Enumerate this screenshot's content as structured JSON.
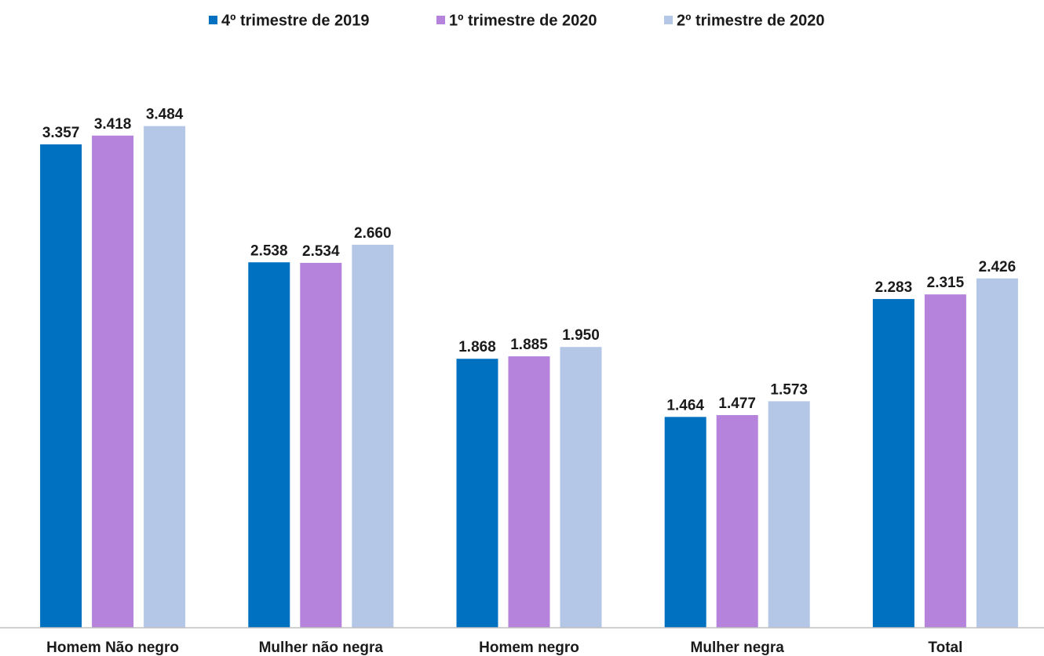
{
  "chart_data": {
    "type": "bar",
    "categories": [
      "Homem Não negro",
      "Mulher não negra",
      "Homem negro",
      "Mulher negra",
      "Total"
    ],
    "series": [
      {
        "name": "4º trimestre de 2019",
        "color": "#0070c0",
        "values": [
          3357,
          2538,
          1868,
          1464,
          2283
        ],
        "value_labels": [
          "3.357",
          "2.538",
          "1.868",
          "1.464",
          "2.283"
        ]
      },
      {
        "name": "1º trimestre de 2020",
        "color": "#b583db",
        "values": [
          3418,
          2534,
          1885,
          1477,
          2315
        ],
        "value_labels": [
          "3.418",
          "2.534",
          "1.885",
          "1.477",
          "2.315"
        ]
      },
      {
        "name": "2º trimestre de 2020",
        "color": "#b4c7e7",
        "values": [
          3484,
          2660,
          1950,
          1573,
          2426
        ],
        "value_labels": [
          "3.484",
          "2.660",
          "1.950",
          "1.573",
          "2.426"
        ]
      }
    ],
    "ylim": [
      0,
      4000
    ],
    "legend": "top"
  }
}
